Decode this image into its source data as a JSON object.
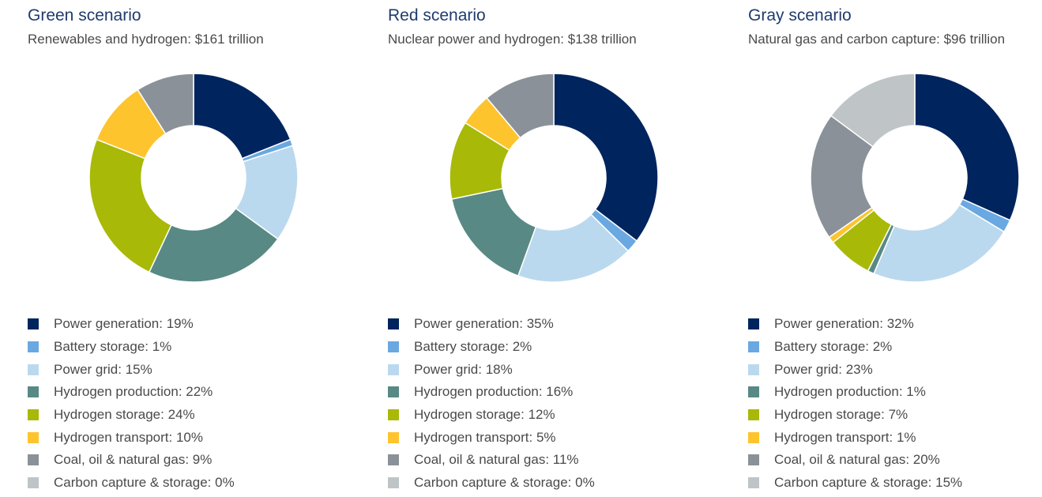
{
  "chart_data": [
    {
      "type": "pie",
      "title": "Green scenario",
      "subtitle": "Renewables and hydrogen: $161 trillion",
      "categories": [
        "Power generation",
        "Battery storage",
        "Power grid",
        "Hydrogen production",
        "Hydrogen storage",
        "Hydrogen transport",
        "Coal, oil & natural gas",
        "Carbon capture & storage"
      ],
      "values": [
        19,
        1,
        15,
        22,
        24,
        10,
        9,
        0
      ],
      "legend_labels": [
        "Power generation: 19%",
        "Battery storage: 1%",
        "Power grid: 15%",
        "Hydrogen production: 22%",
        "Hydrogen storage: 24%",
        "Hydrogen transport: 10%",
        "Coal, oil & natural gas: 9%",
        "Carbon capture & storage: 0%"
      ]
    },
    {
      "type": "pie",
      "title": "Red scenario",
      "subtitle": "Nuclear power and hydrogen: $138 trillion",
      "categories": [
        "Power generation",
        "Battery storage",
        "Power grid",
        "Hydrogen production",
        "Hydrogen storage",
        "Hydrogen transport",
        "Coal, oil & natural gas",
        "Carbon capture & storage"
      ],
      "values": [
        35,
        2,
        18,
        16,
        12,
        5,
        11,
        0
      ],
      "legend_labels": [
        "Power generation: 35%",
        "Battery storage: 2%",
        "Power grid: 18%",
        "Hydrogen production: 16%",
        "Hydrogen storage: 12%",
        "Hydrogen transport: 5%",
        "Coal, oil & natural gas: 11%",
        "Carbon capture & storage: 0%"
      ]
    },
    {
      "type": "pie",
      "title": "Gray scenario",
      "subtitle": "Natural gas and carbon capture: $96 trillion",
      "categories": [
        "Power generation",
        "Battery storage",
        "Power grid",
        "Hydrogen production",
        "Hydrogen storage",
        "Hydrogen transport",
        "Coal, oil & natural gas",
        "Carbon capture & storage"
      ],
      "values": [
        32,
        2,
        23,
        1,
        7,
        1,
        20,
        15
      ],
      "legend_labels": [
        "Power generation: 32%",
        "Battery storage: 2%",
        "Power grid: 23%",
        "Hydrogen production: 1%",
        "Hydrogen storage: 7%",
        "Hydrogen transport: 1%",
        "Coal, oil & natural gas: 20%",
        "Carbon capture & storage: 15%"
      ]
    }
  ],
  "colors": [
    "#00245d",
    "#6aa8e2",
    "#bbd9ee",
    "#588985",
    "#a8b908",
    "#fec42d",
    "#8a9198",
    "#bfc4c7"
  ]
}
